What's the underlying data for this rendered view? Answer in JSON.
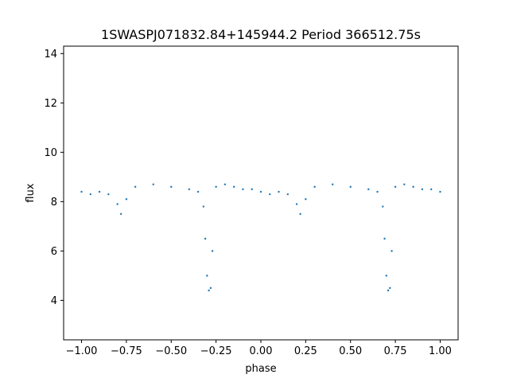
{
  "chart_data": {
    "type": "scatter",
    "title": "1SWASPJ071832.84+145944.2 Period 366512.75s",
    "xlabel": "phase",
    "ylabel": "flux",
    "xlim": [
      -1.1,
      1.1
    ],
    "ylim": [
      2.4,
      14.3
    ],
    "x_ticks": [
      -1.0,
      -0.75,
      -0.5,
      -0.25,
      0.0,
      0.25,
      0.5,
      0.75,
      1.0
    ],
    "x_tick_labels": [
      "−1.00",
      "−0.75",
      "−0.50",
      "−0.25",
      "0.00",
      "0.25",
      "0.50",
      "0.75",
      "1.00"
    ],
    "y_ticks": [
      4,
      6,
      8,
      10,
      12,
      14
    ],
    "y_tick_labels": [
      "4",
      "6",
      "8",
      "10",
      "12",
      "14"
    ],
    "grid": false,
    "legend": "none",
    "marker_color": "#1f77b4",
    "series": [
      {
        "x": [
          -1.0,
          -0.95,
          -0.9,
          -0.85,
          -0.8,
          -0.78,
          -0.75,
          -0.7,
          -0.6,
          -0.5,
          -0.4,
          -0.35,
          -0.32,
          -0.31,
          -0.3,
          -0.29,
          -0.28,
          -0.27,
          -0.25,
          -0.2,
          -0.15,
          -0.1,
          -0.05,
          0.0,
          0.05,
          0.1,
          0.15,
          0.2,
          0.22,
          0.25,
          0.3,
          0.4,
          0.5,
          0.6,
          0.65,
          0.68,
          0.69,
          0.7,
          0.71,
          0.72,
          0.73,
          0.75,
          0.8,
          0.85,
          0.9,
          0.95,
          1.0
        ],
        "y": [
          8.4,
          8.3,
          8.4,
          8.3,
          7.9,
          7.5,
          8.1,
          8.6,
          8.7,
          8.6,
          8.5,
          8.4,
          7.8,
          6.5,
          5.0,
          4.4,
          4.5,
          6.0,
          8.6,
          8.7,
          8.6,
          8.5,
          8.5,
          8.4,
          8.3,
          8.4,
          8.3,
          7.9,
          7.5,
          8.1,
          8.6,
          8.7,
          8.6,
          8.5,
          8.4,
          7.8,
          6.5,
          5.0,
          4.4,
          4.5,
          6.0,
          8.6,
          8.7,
          8.6,
          8.5,
          8.5,
          8.4
        ]
      }
    ]
  }
}
